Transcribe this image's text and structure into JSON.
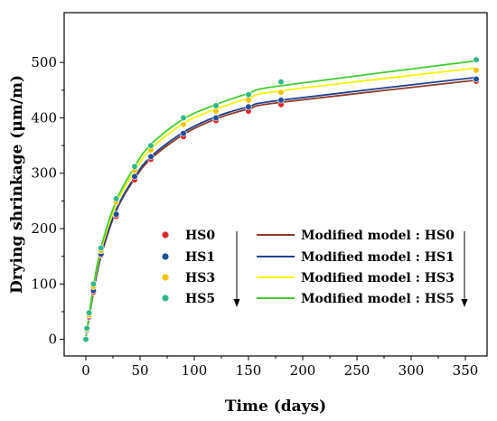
{
  "chart_data": {
    "type": "scatter",
    "title": "",
    "xlabel": "Time (days)",
    "ylabel": "Drying shrinkage (μm/m)",
    "xlim": [
      -20,
      370
    ],
    "ylim": [
      -30,
      590
    ],
    "xticks": [
      0,
      50,
      100,
      150,
      200,
      250,
      300,
      350
    ],
    "yticks": [
      0,
      100,
      200,
      300,
      400,
      500
    ],
    "grid": false,
    "legend_position": "bottom-right",
    "x": [
      0,
      1,
      3,
      7,
      14,
      28,
      45,
      60,
      90,
      120,
      150,
      180,
      360
    ],
    "series": [
      {
        "name": "HS0",
        "color": "#d62828",
        "values": [
          0,
          15,
          40,
          85,
          152,
          222,
          288,
          325,
          366,
          395,
          412,
          424,
          466
        ]
      },
      {
        "name": "HS1",
        "color": "#1f4e9c",
        "values": [
          0,
          16,
          42,
          88,
          154,
          226,
          294,
          330,
          372,
          400,
          420,
          432,
          470
        ]
      },
      {
        "name": "HS3",
        "color": "#f2c200",
        "values": [
          0,
          18,
          44,
          95,
          160,
          248,
          305,
          342,
          388,
          412,
          432,
          446,
          486
        ]
      },
      {
        "name": "HS5",
        "color": "#2eb88a",
        "values": [
          0,
          20,
          48,
          100,
          165,
          254,
          312,
          350,
          400,
          422,
          442,
          465,
          505
        ]
      }
    ],
    "model_series": [
      {
        "name": "Modified model : HS0",
        "color": "#8b3a2a",
        "values": [
          0,
          14,
          38,
          85,
          150,
          232,
          290,
          326,
          370,
          398,
          416,
          428,
          468
        ]
      },
      {
        "name": "Modified model : HS1",
        "color": "#1f3f8f",
        "values": [
          0,
          14,
          39,
          86,
          152,
          234,
          293,
          330,
          374,
          402,
          420,
          432,
          473
        ]
      },
      {
        "name": "Modified model : HS3",
        "color": "#f5f500",
        "values": [
          0,
          16,
          42,
          92,
          160,
          244,
          304,
          344,
          390,
          416,
          435,
          449,
          490
        ]
      },
      {
        "name": "Modified model : HS5",
        "color": "#44cc33",
        "values": [
          0,
          17,
          44,
          95,
          166,
          250,
          312,
          352,
          398,
          424,
          444,
          458,
          503
        ]
      }
    ]
  }
}
